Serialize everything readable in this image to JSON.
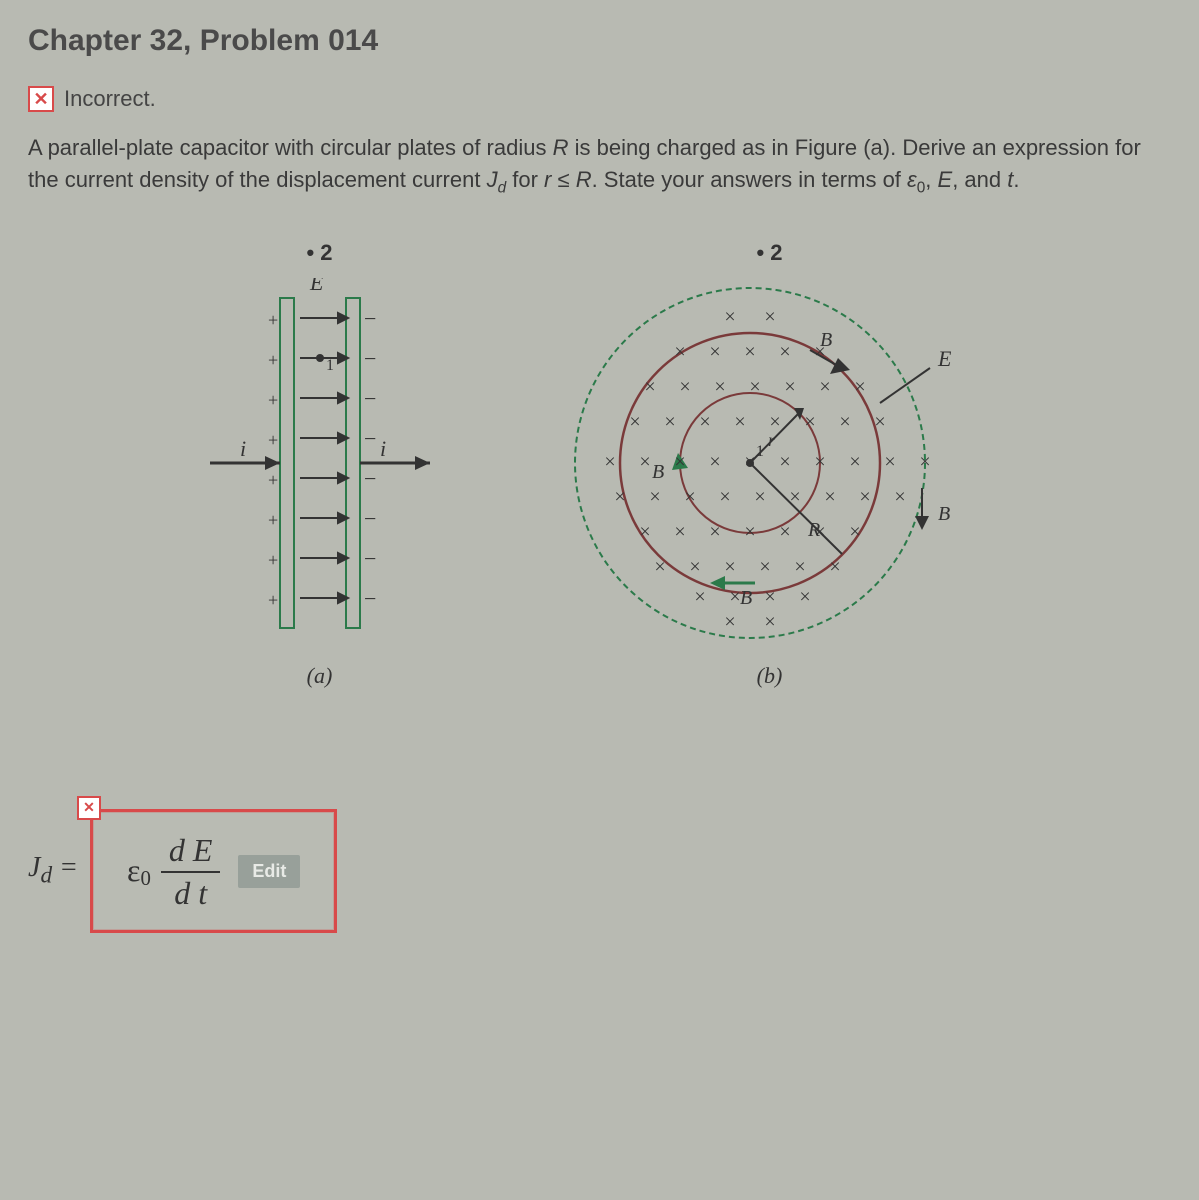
{
  "title": "Chapter 32, Problem 014",
  "status": {
    "icon_glyph": "✕",
    "label": "Incorrect."
  },
  "problem_html": "A parallel-plate capacitor with circular plates of radius <em class='var'>R</em> is being charged as in Figure (a). Derive an expression for the current density of the displacement current <em class='var'>J<sub>d</sub></em> for <em class='var'>r</em> ≤ <em class='var'>R</em>. State your answers in terms of <em class='var'>ε</em><sub>0</sub>, <em class='var'>E</em>, and <em class='var'>t</em>.",
  "figure": {
    "a": {
      "top_label": "• 2",
      "caption": "(a)",
      "E_label": "E⃗",
      "i_label": "i",
      "plus": "+",
      "stroke": "#2b7a4a",
      "wire": "#333"
    },
    "b": {
      "top_label": "• 2",
      "caption": "(b)",
      "E_label": "E⃗",
      "B_label": "B⃗",
      "R_label": "R",
      "r_label": "r",
      "one": "1",
      "x_glyph": "×",
      "outer_stroke": "#2b7a4a",
      "inner_stroke": "#7a3a3a",
      "x_color": "#333",
      "arrow_color": "#2b7a4a",
      "bg": "#b8bab2"
    }
  },
  "answer": {
    "x_icon": "✕",
    "lhs": "J<sub>d</sub> =",
    "epsilon": "ε<sub>0</sub>",
    "frac_num": "d E",
    "frac_den": "d t",
    "edit_label": "Edit"
  },
  "colors": {
    "page_bg": "#b8bab2",
    "error_red": "#d84a4a",
    "text": "#333333",
    "btn_bg": "#98a09a",
    "btn_fg": "#e8eae6"
  }
}
